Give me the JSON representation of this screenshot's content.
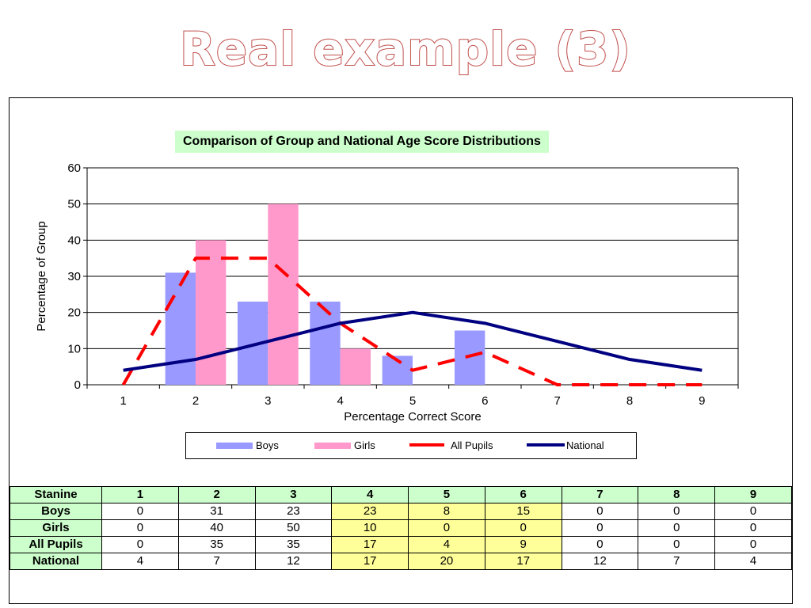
{
  "slide": {
    "title": "Real example (3)"
  },
  "chart_data": {
    "type": "bar",
    "title": "Comparison of Group and National Age Score Distributions",
    "xlabel": "Percentage Correct Score",
    "ylabel": "Percentage of Group",
    "ylim": [
      0,
      60
    ],
    "yticks": [
      "0",
      "10",
      "20",
      "30",
      "40",
      "50",
      "60"
    ],
    "categories": [
      "1",
      "2",
      "3",
      "4",
      "5",
      "6",
      "7",
      "8",
      "9"
    ],
    "grid": true,
    "legend_position": "bottom",
    "series": [
      {
        "name": "Boys",
        "kind": "bar",
        "color": "#9999ff",
        "values": [
          0,
          31,
          23,
          23,
          8,
          15,
          0,
          0,
          0
        ]
      },
      {
        "name": "Girls",
        "kind": "bar",
        "color": "#ff99cc",
        "values": [
          0,
          40,
          50,
          10,
          0,
          0,
          0,
          0,
          0
        ]
      },
      {
        "name": "All Pupils",
        "kind": "line",
        "style": "dashed",
        "color": "#ff0000",
        "values": [
          0,
          35,
          35,
          17,
          4,
          9,
          0,
          0,
          0
        ]
      },
      {
        "name": "National",
        "kind": "line",
        "style": "solid",
        "color": "#000080",
        "values": [
          4,
          7,
          12,
          17,
          20,
          17,
          12,
          7,
          4
        ]
      }
    ]
  },
  "table": {
    "header": [
      "Stanine",
      "1",
      "2",
      "3",
      "4",
      "5",
      "6",
      "7",
      "8",
      "9"
    ],
    "rows": [
      {
        "label": "Boys",
        "values": [
          "0",
          "31",
          "23",
          "23",
          "8",
          "15",
          "0",
          "0",
          "0"
        ]
      },
      {
        "label": "Girls",
        "values": [
          "0",
          "40",
          "50",
          "10",
          "0",
          "0",
          "0",
          "0",
          "0"
        ]
      },
      {
        "label": "All Pupils",
        "values": [
          "0",
          "35",
          "35",
          "17",
          "4",
          "9",
          "0",
          "0",
          "0"
        ]
      },
      {
        "label": "National",
        "values": [
          "4",
          "7",
          "12",
          "17",
          "20",
          "17",
          "12",
          "7",
          "4"
        ]
      }
    ],
    "highlight_color": "#ffff99",
    "header_color": "#ccffcc"
  }
}
